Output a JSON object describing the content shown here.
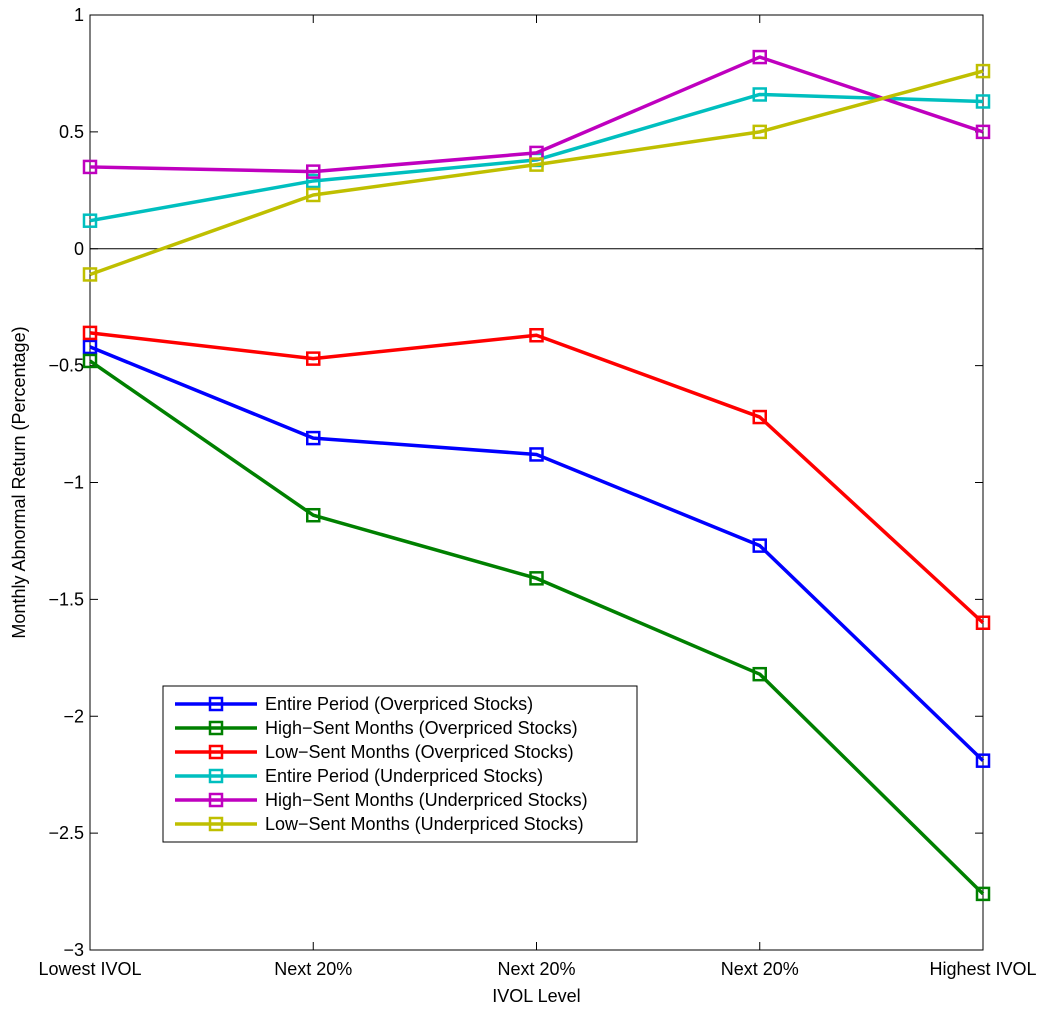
{
  "chart_data": {
    "type": "line",
    "xlabel": "IVOL Level",
    "ylabel": "Monthly Abnormal Return (Percentage)",
    "categories": [
      "Lowest IVOL",
      "Next 20%",
      "Next 20%",
      "Next 20%",
      "Highest IVOL"
    ],
    "ylim": [
      -3,
      1
    ],
    "yticks": [
      1,
      0.5,
      0,
      -0.5,
      -1,
      -1.5,
      -2,
      -2.5,
      -3
    ],
    "ytick_labels": [
      "1",
      "0.5",
      "0",
      "−0.5",
      "−1",
      "−1.5",
      "−2",
      "−2.5",
      "−3"
    ],
    "grid": false,
    "zero_line": true,
    "legend_position": "lower-left",
    "marker": "square",
    "series": [
      {
        "name": "Entire Period (Overpriced Stocks)",
        "color": "#0000ff",
        "values": [
          -0.42,
          -0.81,
          -0.88,
          -1.27,
          -2.19
        ]
      },
      {
        "name": "High−Sent Months (Overpriced Stocks)",
        "color": "#008000",
        "values": [
          -0.48,
          -1.14,
          -1.41,
          -1.82,
          -2.76
        ]
      },
      {
        "name": "Low−Sent Months (Overpriced Stocks)",
        "color": "#ff0000",
        "values": [
          -0.36,
          -0.47,
          -0.37,
          -0.72,
          -1.6
        ]
      },
      {
        "name": "Entire Period (Underpriced Stocks)",
        "color": "#00bfbf",
        "values": [
          0.12,
          0.29,
          0.38,
          0.66,
          0.63
        ]
      },
      {
        "name": "High−Sent Months (Underpriced Stocks)",
        "color": "#bf00bf",
        "values": [
          0.35,
          0.33,
          0.41,
          0.82,
          0.5
        ]
      },
      {
        "name": "Low−Sent Months (Underpriced Stocks)",
        "color": "#bfbf00",
        "values": [
          -0.11,
          0.23,
          0.36,
          0.5,
          0.76
        ]
      }
    ]
  }
}
